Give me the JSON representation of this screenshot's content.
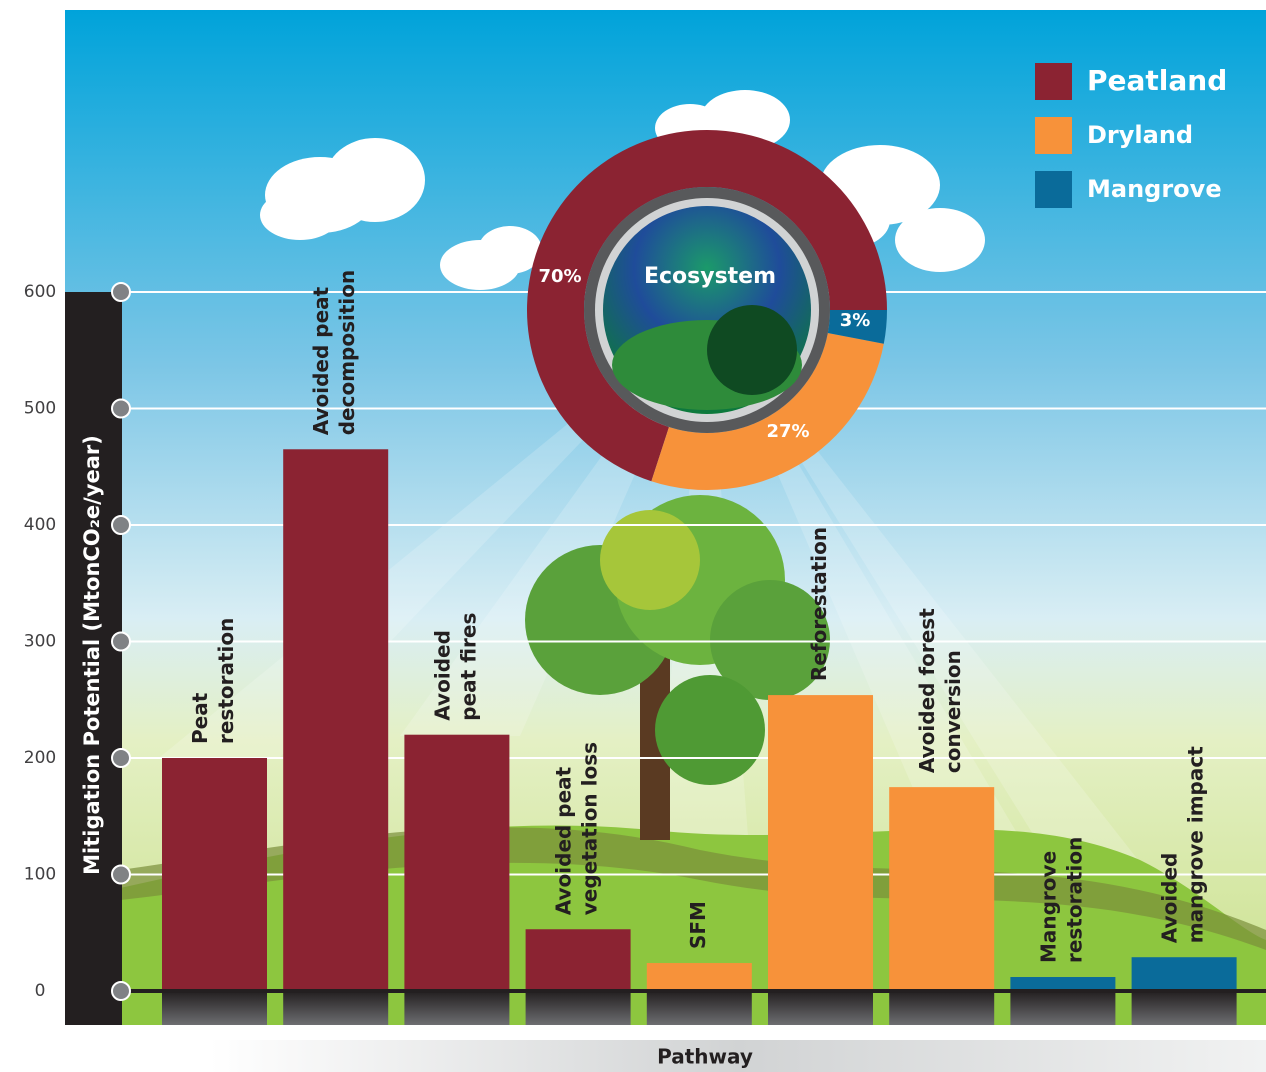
{
  "chart_data": [
    {
      "type": "bar",
      "categories": [
        [
          "Peat",
          "restoration"
        ],
        [
          "Avoided peat",
          "decomposition"
        ],
        [
          "Avoided",
          "peat fires"
        ],
        [
          "Avoided peat",
          "vegetation loss"
        ],
        [
          "SFM"
        ],
        [
          "Reforestation"
        ],
        [
          "Avoided forest",
          "conversion"
        ],
        [
          "Mangrove",
          "restoration"
        ],
        [
          "Avoided",
          "mangrove impact"
        ]
      ],
      "series": [
        {
          "name": "Peatland",
          "color": "#8b2332",
          "values": [
            200,
            465,
            220,
            53,
            null,
            null,
            null,
            null,
            null
          ]
        },
        {
          "name": "Dryland",
          "color": "#f7923a",
          "values": [
            null,
            null,
            null,
            null,
            24,
            254,
            175,
            null,
            null
          ]
        },
        {
          "name": "Mangrove",
          "color": "#0a6b9a",
          "values": [
            null,
            null,
            null,
            null,
            null,
            null,
            null,
            12,
            29
          ]
        }
      ],
      "y_label": "Mitigation Potential (MtonCO₂e/year)",
      "x_label": "Pathway",
      "ylim": [
        0,
        600
      ],
      "yticks": [
        0,
        100,
        200,
        300,
        400,
        500,
        600
      ],
      "grid": true,
      "legend": "top-right"
    },
    {
      "type": "pie",
      "title": "Ecosystem",
      "values": [
        70,
        27,
        3
      ],
      "value_labels": [
        "70%",
        "27%",
        "3%"
      ],
      "colors": [
        "#8b2332",
        "#f7923a",
        "#0a6b9a"
      ]
    }
  ]
}
